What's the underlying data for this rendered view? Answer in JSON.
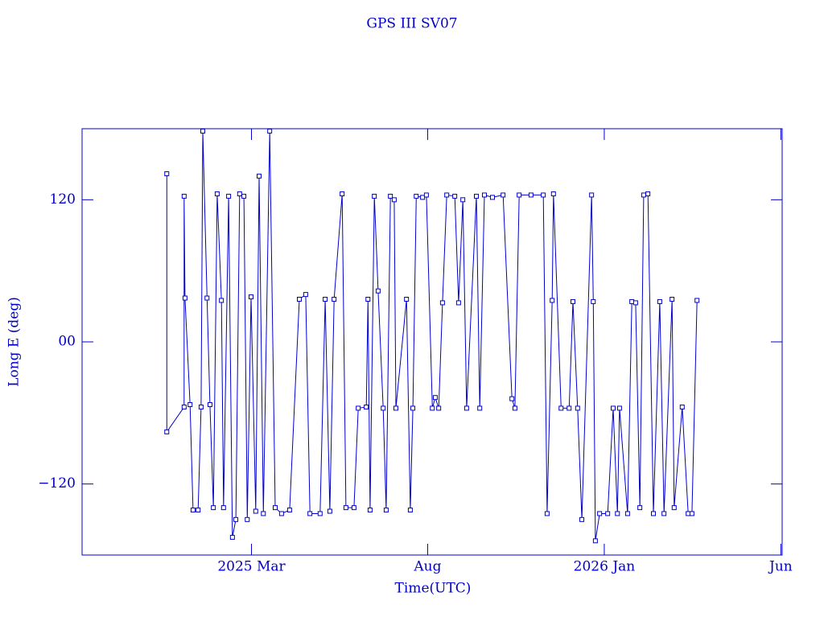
{
  "chart_data": {
    "type": "line",
    "title": "GPS III SV07",
    "xlabel": "Time(UTC)",
    "ylabel": "Long E (deg)",
    "color": "#0000cc",
    "markers": true,
    "xlim": [
      2024.767,
      2026.42
    ],
    "ylim": [
      -180,
      180
    ],
    "xticks": [
      {
        "value": 2025.167,
        "label": "2025 Mar"
      },
      {
        "value": 2025.583,
        "label": "Aug"
      },
      {
        "value": 2026.0,
        "label": "2026 Jan"
      },
      {
        "value": 2026.417,
        "label": "Jun"
      }
    ],
    "yticks": [
      {
        "value": -120,
        "label": "−120"
      },
      {
        "value": 0,
        "label": "00"
      },
      120
    ],
    "x": [
      2024.967,
      2024.967,
      2025.008,
      2025.008,
      2025.01,
      2025.022,
      2025.029,
      2025.041,
      2025.048,
      2025.052,
      2025.062,
      2025.069,
      2025.077,
      2025.086,
      2025.096,
      2025.101,
      2025.113,
      2025.122,
      2025.13,
      2025.139,
      2025.149,
      2025.157,
      2025.166,
      2025.177,
      2025.185,
      2025.195,
      2025.21,
      2025.223,
      2025.238,
      2025.257,
      2025.28,
      2025.295,
      2025.305,
      2025.329,
      2025.341,
      2025.352,
      2025.362,
      2025.381,
      2025.39,
      2025.409,
      2025.419,
      2025.438,
      2025.442,
      2025.447,
      2025.457,
      2025.466,
      2025.478,
      2025.485,
      2025.495,
      2025.504,
      2025.508,
      2025.533,
      2025.542,
      2025.548,
      2025.556,
      2025.571,
      2025.58,
      2025.594,
      2025.601,
      2025.609,
      2025.618,
      2025.628,
      2025.647,
      2025.656,
      2025.666,
      2025.675,
      2025.698,
      2025.706,
      2025.717,
      2025.736,
      2025.761,
      2025.782,
      2025.789,
      2025.799,
      2025.827,
      2025.856,
      2025.865,
      2025.877,
      2025.88,
      2025.898,
      2025.917,
      2025.926,
      2025.937,
      2025.947,
      2025.97,
      2025.974,
      2025.979,
      2025.989,
      2026.008,
      2026.021,
      2026.031,
      2026.036,
      2026.055,
      2026.065,
      2026.074,
      2026.084,
      2026.093,
      2026.103,
      2026.116,
      2026.131,
      2026.141,
      2026.16,
      2026.165,
      2026.184,
      2026.198,
      2026.207,
      2026.219
    ],
    "values": [
      142,
      -76,
      -55,
      123,
      37,
      -53,
      -142,
      -142,
      -55,
      178,
      37,
      -53,
      -140,
      125,
      35,
      -140,
      123,
      -165,
      -150,
      125,
      123,
      -150,
      38,
      -143,
      140,
      -145,
      178,
      -140,
      -145,
      -142,
      36,
      40,
      -145,
      -145,
      36,
      -143,
      36,
      125,
      -140,
      -140,
      -56,
      -55,
      36,
      -142,
      123,
      43,
      -56,
      -142,
      123,
      120,
      -56,
      36,
      -142,
      -56,
      123,
      122,
      124,
      -56,
      -47,
      -56,
      33,
      124,
      123,
      33,
      120,
      -56,
      123,
      -56,
      124,
      122,
      124,
      -48,
      -56,
      124,
      124,
      124,
      -145,
      35,
      125,
      -56,
      -56,
      34,
      -56,
      -150,
      124,
      34,
      -168,
      -145,
      -145,
      -56,
      -145,
      -56,
      -145,
      34,
      33,
      -140,
      124,
      125,
      -145,
      34,
      -145,
      36,
      -140,
      -55,
      -145,
      -145,
      35
    ]
  }
}
